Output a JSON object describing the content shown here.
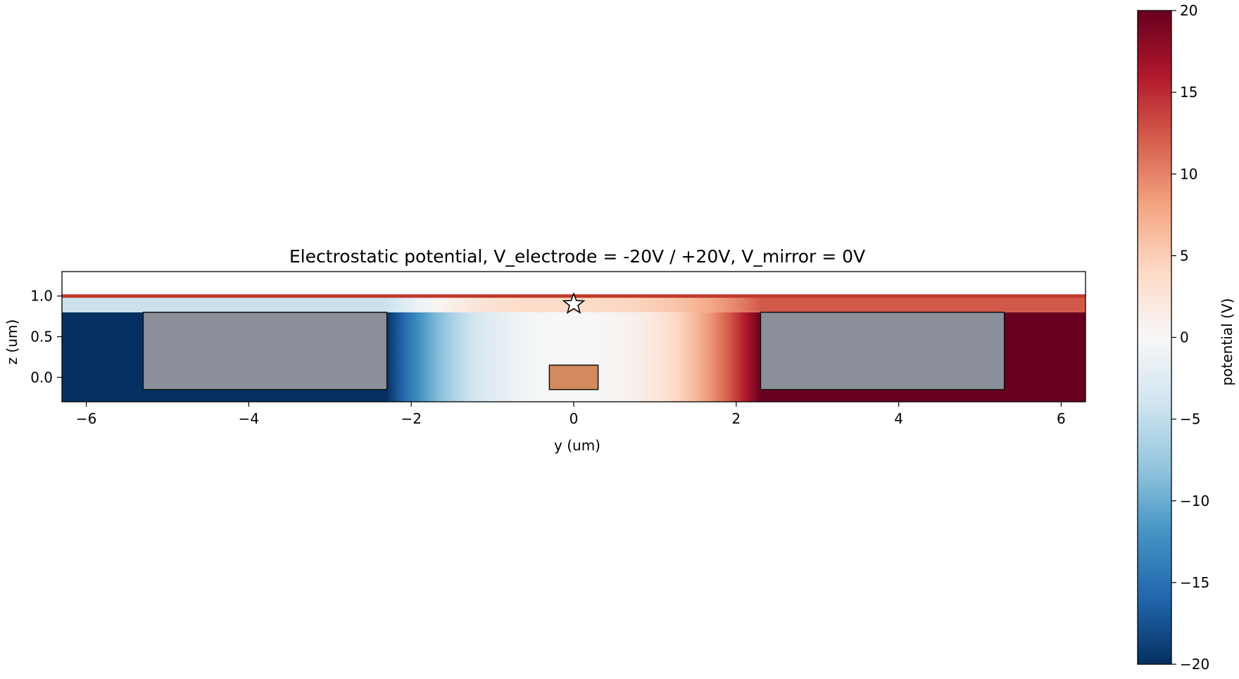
{
  "chart_data": {
    "type": "heatmap",
    "title": "Electrostatic potential, V_electrode = -20V / +20V, V_mirror = 0V",
    "xlabel": "y (um)",
    "ylabel": "z (um)",
    "xlim": [
      -6.3,
      6.3
    ],
    "ylim": [
      -0.3,
      1.3
    ],
    "xticks": [
      -6,
      -4,
      -2,
      0,
      2,
      4,
      6
    ],
    "yticks": [
      0.0,
      0.5,
      1.0
    ],
    "grid": false,
    "colormap": "RdBu_r",
    "colorbar": {
      "label": "potential (V)",
      "range": [
        -20,
        20
      ],
      "ticks": [
        -20,
        -15,
        -10,
        -5,
        0,
        5,
        10,
        15,
        20
      ]
    },
    "field": {
      "z_range": [
        -0.3,
        0.8
      ],
      "cladding_z_range": [
        0.8,
        1.0
      ],
      "left_value": -20,
      "right_value": 20
    },
    "mirror_line": {
      "z": 1.0,
      "color": "#c0392b",
      "voltage": 0
    },
    "electrodes": [
      {
        "name": "left electrode",
        "y": [
          -5.3,
          -2.3
        ],
        "z": [
          -0.15,
          0.8
        ],
        "voltage": -20,
        "color": "#8a8f99"
      },
      {
        "name": "right electrode",
        "y": [
          2.3,
          5.3
        ],
        "z": [
          -0.15,
          0.8
        ],
        "voltage": 20,
        "color": "#8a8f99"
      }
    ],
    "waveguide": {
      "y": [
        -0.3,
        0.3
      ],
      "z": [
        -0.15,
        0.15
      ],
      "color": "#d4895e"
    },
    "marker": {
      "shape": "star",
      "y": 0,
      "z": 0.9
    }
  }
}
